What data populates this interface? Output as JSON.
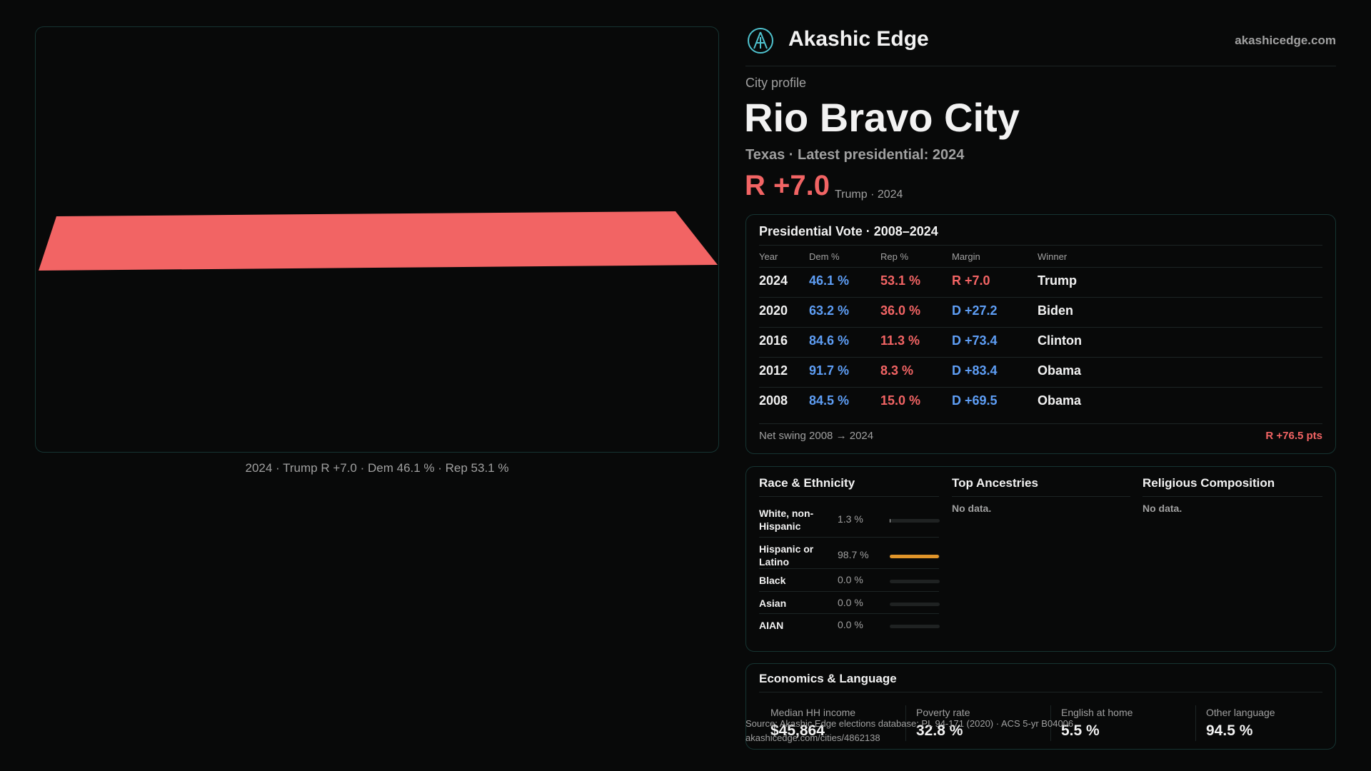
{
  "map": {
    "caption": "2024 · Trump R +7.0 · Dem 46.1 % · Rep 53.1 %"
  },
  "header": {
    "brand": "Akashic Edge",
    "domain": "akashicedge.com"
  },
  "profile": {
    "kicker": "City profile",
    "title": "Rio Bravo City",
    "subtitle": "Texas · Latest presidential: 2024",
    "margin": "R +7.0",
    "margin_note": "Trump · 2024"
  },
  "vote": {
    "title": "Presidential Vote · 2008–2024",
    "columns": [
      "Year",
      "Dem %",
      "Rep %",
      "Margin",
      "Winner"
    ],
    "rows": [
      [
        "2024",
        "46.1 %",
        "53.1 %",
        "R +7.0",
        "Trump"
      ],
      [
        "2020",
        "63.2 %",
        "36.0 %",
        "D +27.2",
        "Biden"
      ],
      [
        "2016",
        "84.6 %",
        "11.3 %",
        "D +73.4",
        "Clinton"
      ],
      [
        "2012",
        "91.7 %",
        "8.3 %",
        "D +83.4",
        "Obama"
      ],
      [
        "2008",
        "84.5 %",
        "15.0 %",
        "D +69.5",
        "Obama"
      ]
    ],
    "swing_label": "Net swing 2008 → 2024",
    "swing_value": "R +76.5 pts"
  },
  "race": {
    "title": "Race & Ethnicity",
    "rows": [
      {
        "label": "White, non-Hispanic",
        "value": 1.3,
        "value_label": "1.3 %"
      },
      {
        "label": "Hispanic or Latino",
        "value": 98.7,
        "value_label": "98.7 %"
      },
      {
        "label": "Black",
        "value": 0.0,
        "value_label": "0.0 %"
      },
      {
        "label": "Asian",
        "value": 0.0,
        "value_label": "0.0 %"
      },
      {
        "label": "AIAN",
        "value": 0.0,
        "value_label": "0.0 %"
      }
    ]
  },
  "ancestry": {
    "title": "Top Ancestries",
    "empty": "No data."
  },
  "religion": {
    "title": "Religious Composition",
    "empty": "No data."
  },
  "economics": {
    "title": "Economics & Language",
    "items": [
      {
        "label": "Median HH income",
        "value": "$45,864"
      },
      {
        "label": "Poverty rate",
        "value": "32.8 %"
      },
      {
        "label": "English at home",
        "value": "5.5 %"
      },
      {
        "label": "Other language",
        "value": "94.5 %"
      }
    ]
  },
  "footer": {
    "source": "Source: Akashic Edge elections database; PL 94-171 (2020) · ACS 5-yr B04006",
    "url": "akashicedge.com/cities/4862138"
  }
}
